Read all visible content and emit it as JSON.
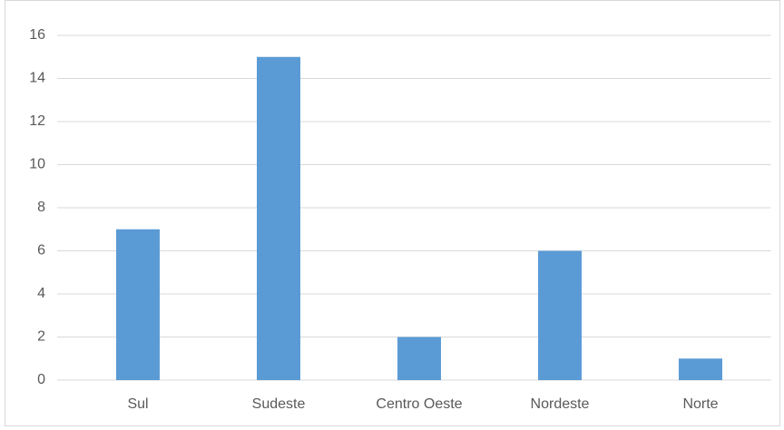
{
  "chart_data": {
    "type": "bar",
    "categories": [
      "Sul",
      "Sudeste",
      "Centro Oeste",
      "Nordeste",
      "Norte"
    ],
    "values": [
      7,
      15,
      2,
      6,
      1
    ],
    "color": "#5b9bd5",
    "ylim": [
      0,
      16
    ],
    "yticks": [
      0,
      2,
      4,
      6,
      8,
      10,
      12,
      14,
      16
    ],
    "grid": true
  }
}
